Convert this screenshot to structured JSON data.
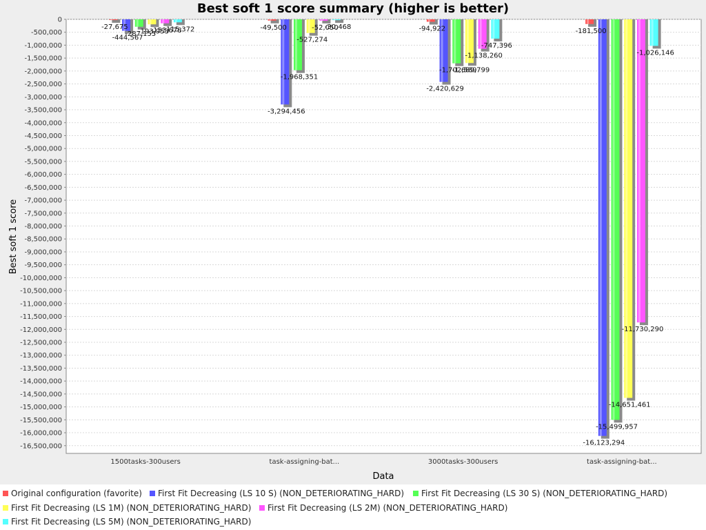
{
  "chart_data": {
    "type": "bar",
    "title": "Best soft 1 score summary (higher is better)",
    "xlabel": "Data",
    "ylabel": "Best soft 1 score",
    "ylim": [
      -16800000,
      0
    ],
    "ytick_step": 500000,
    "grid": true,
    "legend_position": "bottom",
    "categories": [
      "1500tasks-300users",
      "task-assigning-bat...",
      "3000tasks-300users",
      "task-assigning-bat..."
    ],
    "series": [
      {
        "name": "Original configuration (favorite)",
        "color": "#ff5555",
        "values": [
          -27675,
          -49500,
          -94922,
          -181500
        ],
        "value_labels": [
          "-27,675",
          "-49,500",
          "-94,922",
          "-181,500"
        ]
      },
      {
        "name": "First Fit Decreasing (LS 10 S) (NON_DETERIORATING_HARD)",
        "color": "#5555ff",
        "values": [
          -444567,
          -3294456,
          -2420629,
          -16123294
        ],
        "value_labels": [
          "-444,567",
          "-3,294,456",
          "-2,420,629",
          "-16,123,294"
        ]
      },
      {
        "name": "First Fit Decreasing (LS 30 S) (NON_DETERIORATING_HARD)",
        "color": "#55ff55",
        "values": [
          -287155,
          -1968351,
          -1702589,
          -15499957
        ],
        "value_labels": [
          "-287,155",
          "-1,968,351",
          "-1,702,589",
          "-15,499,957"
        ]
      },
      {
        "name": "First Fit Decreasing (LS 1M) (NON_DETERIORATING_HARD)",
        "color": "#ffff55",
        "values": [
          -193953,
          -527274,
          -1689799,
          -14651461
        ],
        "value_labels": [
          "-193,953",
          "-527,274",
          "-1,689,799",
          "-14,651,461"
        ]
      },
      {
        "name": "First Fit Decreasing (LS 2M) (NON_DETERIORATING_HARD)",
        "color": "#ff55ff",
        "values": [
          -153678,
          -52050,
          -1138260,
          -11730290
        ],
        "value_labels": [
          "-153,678",
          "-52,050",
          "-1,138,260",
          "-11,730,290"
        ]
      },
      {
        "name": "First Fit Decreasing (LS 5M) (NON_DETERIORATING_HARD)",
        "color": "#55ffff",
        "values": [
          -115372,
          -30468,
          -747396,
          -1026146
        ],
        "value_labels": [
          "-115,372",
          "-30,468",
          "-747,396",
          "-1,026,146"
        ]
      }
    ]
  }
}
